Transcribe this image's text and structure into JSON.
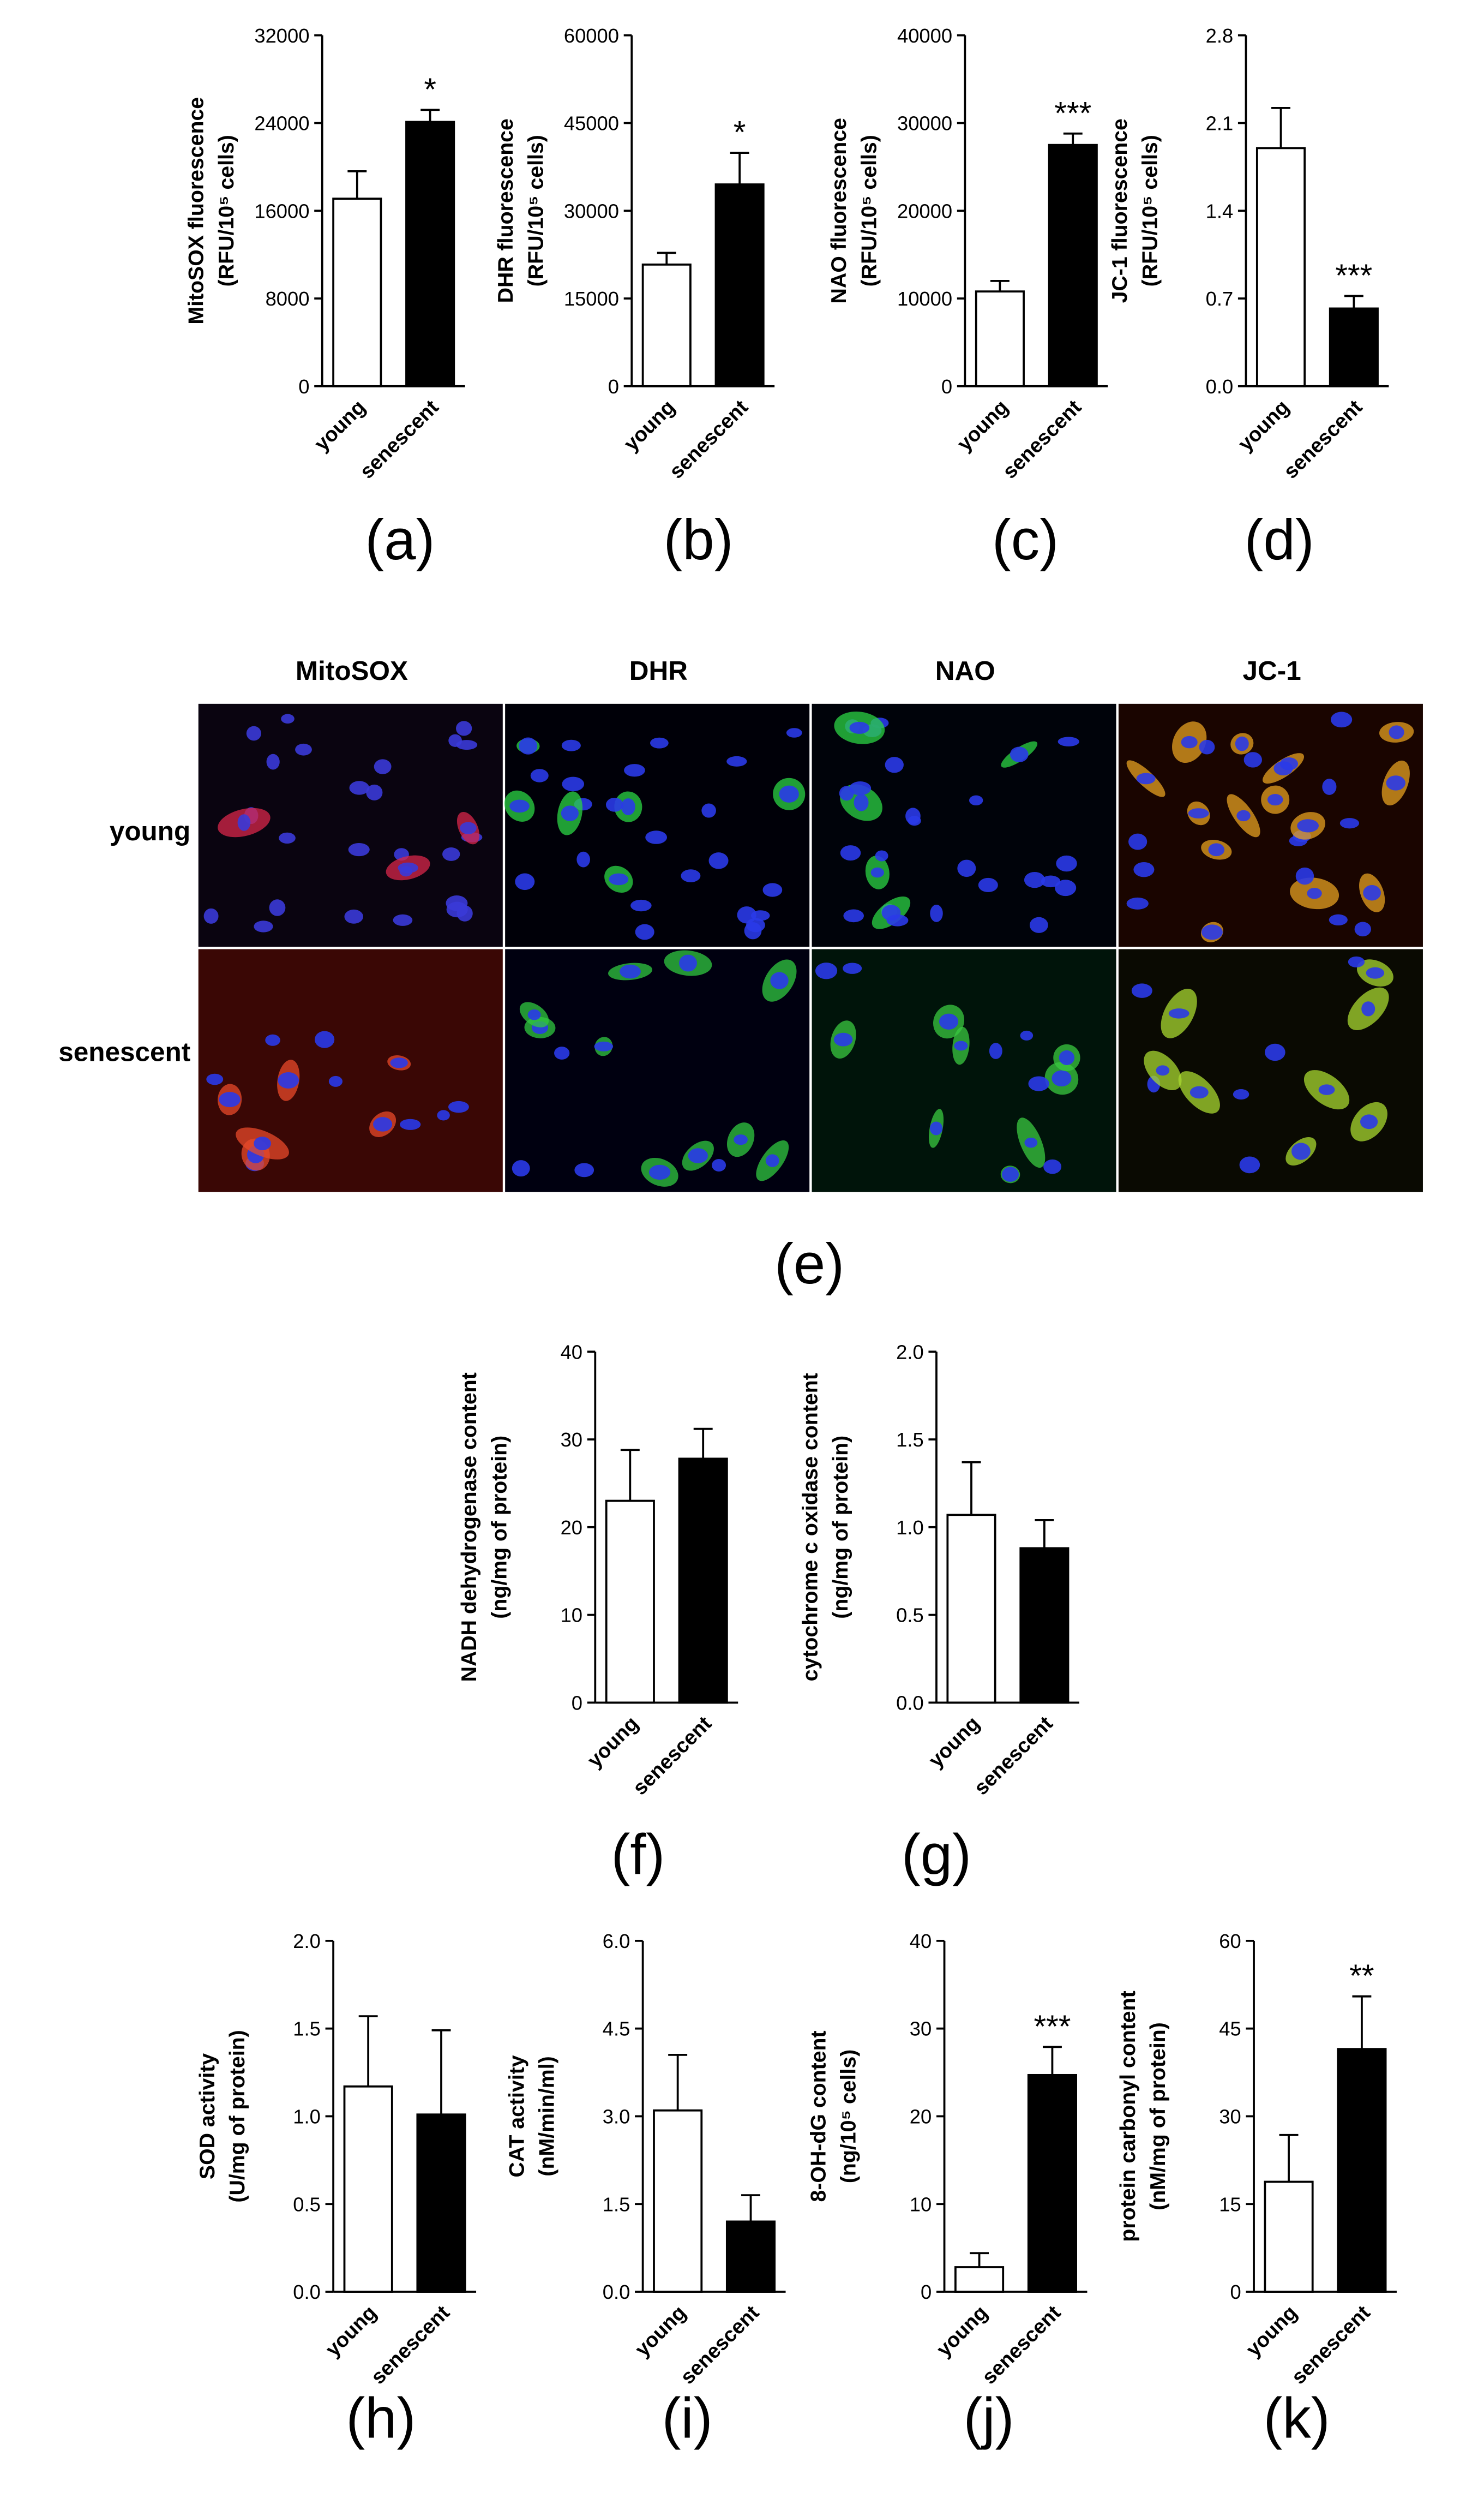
{
  "chart_data": [
    {
      "type": "bar",
      "panel_label": "(a)",
      "ylabel": [
        "MitoSOX fluorescence",
        "(RFU/10⁵ cells)"
      ],
      "categories": [
        "young",
        "senescent"
      ],
      "values": [
        17100,
        24100
      ],
      "errors": [
        2500,
        1100
      ],
      "colors": [
        "#ffffff",
        "#000000"
      ],
      "ylim": [
        0,
        32000
      ],
      "yticks": [
        0,
        8000,
        16000,
        24000,
        32000
      ],
      "annotation": "*"
    },
    {
      "type": "bar",
      "panel_label": "(b)",
      "ylabel": [
        "DHR fluorescence",
        "(RFU/10⁵ cells)"
      ],
      "categories": [
        "young",
        "senescent"
      ],
      "values": [
        20800,
        34500
      ],
      "errors": [
        2000,
        5400
      ],
      "colors": [
        "#ffffff",
        "#000000"
      ],
      "ylim": [
        0,
        60000
      ],
      "yticks": [
        0,
        15000,
        30000,
        45000,
        60000
      ],
      "annotation": "*"
    },
    {
      "type": "bar",
      "panel_label": "(c)",
      "ylabel": [
        "NAO fluorescence",
        "(RFU/10⁵ cells)"
      ],
      "categories": [
        "young",
        "senescent"
      ],
      "values": [
        10800,
        27500
      ],
      "errors": [
        1200,
        1300
      ],
      "colors": [
        "#ffffff",
        "#000000"
      ],
      "ylim": [
        0,
        40000
      ],
      "yticks": [
        0,
        10000,
        20000,
        30000,
        40000
      ],
      "annotation": "***"
    },
    {
      "type": "bar",
      "panel_label": "(d)",
      "ylabel": [
        "JC-1 fluorescence",
        "(RFU/10⁵ cells)"
      ],
      "categories": [
        "young",
        "senescent"
      ],
      "values": [
        1.9,
        0.62
      ],
      "errors": [
        0.32,
        0.1
      ],
      "colors": [
        "#ffffff",
        "#000000"
      ],
      "ylim": [
        0,
        2.8
      ],
      "yticks": [
        {
          "value": 0,
          "label": "0.0"
        },
        0.7,
        1.4,
        2.1,
        2.8
      ],
      "annotation": "***"
    },
    {
      "type": "bar",
      "panel_label": "(f)",
      "ylabel": [
        "NADH dehydrogenase content",
        "(ng/mg of protein)"
      ],
      "categories": [
        "young",
        "senescent"
      ],
      "values": [
        23,
        27.8
      ],
      "errors": [
        5.8,
        3.4
      ],
      "colors": [
        "#ffffff",
        "#000000"
      ],
      "ylim": [
        0,
        40
      ],
      "yticks": [
        0,
        10,
        20,
        30,
        40
      ]
    },
    {
      "type": "bar",
      "panel_label": "(g)",
      "ylabel": [
        "cytochrome c oxidase content",
        "(ng/mg of protein)"
      ],
      "categories": [
        "young",
        "senescent"
      ],
      "values": [
        1.07,
        0.88
      ],
      "errors": [
        0.3,
        0.16
      ],
      "colors": [
        "#ffffff",
        "#000000"
      ],
      "ylim": [
        0,
        2
      ],
      "yticks": [
        {
          "value": 0,
          "label": "0.0"
        },
        0.5,
        {
          "value": 1,
          "label": "1.0"
        },
        1.5,
        {
          "value": 2,
          "label": "2.0"
        }
      ]
    },
    {
      "type": "bar",
      "panel_label": "(h)",
      "ylabel": [
        "SOD activity",
        "(U/mg of protein)"
      ],
      "categories": [
        "young",
        "senescent"
      ],
      "values": [
        1.17,
        1.01
      ],
      "errors": [
        0.4,
        0.48
      ],
      "colors": [
        "#ffffff",
        "#000000"
      ],
      "ylim": [
        0,
        2
      ],
      "yticks": [
        {
          "value": 0,
          "label": "0.0"
        },
        0.5,
        {
          "value": 1,
          "label": "1.0"
        },
        1.5,
        {
          "value": 2,
          "label": "2.0"
        }
      ]
    },
    {
      "type": "bar",
      "panel_label": "(i)",
      "ylabel": [
        "CAT activity",
        "(nM/min/ml)"
      ],
      "categories": [
        "young",
        "senescent"
      ],
      "values": [
        3.1,
        1.2
      ],
      "errors": [
        0.95,
        0.45
      ],
      "colors": [
        "#ffffff",
        "#000000"
      ],
      "ylim": [
        0,
        6
      ],
      "yticks": [
        {
          "value": 0,
          "label": "0.0"
        },
        1.5,
        {
          "value": 3,
          "label": "3.0"
        },
        4.5,
        {
          "value": 6,
          "label": "6.0"
        }
      ]
    },
    {
      "type": "bar",
      "panel_label": "(j)",
      "ylabel": [
        "8-OH-dG content",
        "(ng/10⁵ cells)"
      ],
      "categories": [
        "young",
        "senescent"
      ],
      "values": [
        2.8,
        24.7
      ],
      "errors": [
        1.6,
        3.2
      ],
      "colors": [
        "#ffffff",
        "#000000"
      ],
      "ylim": [
        0,
        40
      ],
      "yticks": [
        0,
        10,
        20,
        30,
        40
      ],
      "annotation": "***"
    },
    {
      "type": "bar",
      "panel_label": "(k)",
      "ylabel": [
        "protein carbonyl content",
        "(nM/mg of protein)"
      ],
      "categories": [
        "young",
        "senescent"
      ],
      "values": [
        18.8,
        41.5
      ],
      "errors": [
        8,
        9
      ],
      "colors": [
        "#ffffff",
        "#000000"
      ],
      "ylim": [
        0,
        60
      ],
      "yticks": [
        0,
        15,
        30,
        45,
        60
      ],
      "annotation": "**"
    }
  ],
  "image_panel": {
    "panel_label": "(e)",
    "columns": [
      "MitoSOX",
      "DHR",
      "NAO",
      "JC-1"
    ],
    "rows": [
      "young",
      "senescent"
    ]
  }
}
